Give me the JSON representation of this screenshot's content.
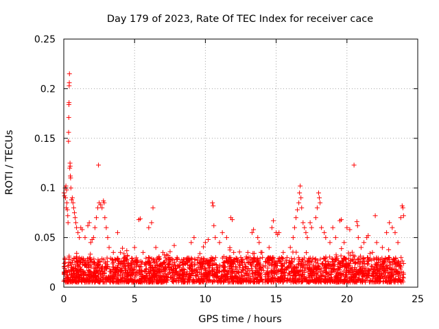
{
  "chart_data": {
    "type": "scatter",
    "title": "Day 179 of 2023, Rate Of TEC Index for receiver cace",
    "xlabel": "GPS time / hours",
    "ylabel": "ROTI / TECUs",
    "xlim": [
      0,
      25
    ],
    "ylim": [
      0,
      0.25
    ],
    "x_ticks": [
      0,
      5,
      10,
      15,
      20,
      25
    ],
    "x_tick_labels": [
      "0",
      "5",
      "10",
      "15",
      "20",
      "25"
    ],
    "y_ticks": [
      0,
      0.05,
      0.1,
      0.15,
      0.2,
      0.25
    ],
    "y_tick_labels": [
      "0",
      "0.05",
      "0.1",
      "0.15",
      "0.2",
      "0.25"
    ],
    "grid": true,
    "marker": "+",
    "series_color": "#ff0000",
    "background_band": {
      "x_range": [
        0,
        24
      ],
      "y_typical": [
        0.005,
        0.03
      ]
    },
    "points": [
      [
        0.02,
        0.095
      ],
      [
        0.05,
        0.092
      ],
      [
        0.1,
        0.1
      ],
      [
        0.12,
        0.09
      ],
      [
        0.15,
        0.102
      ],
      [
        0.18,
        0.08
      ],
      [
        0.2,
        0.098
      ],
      [
        0.22,
        0.085
      ],
      [
        0.25,
        0.078
      ],
      [
        0.28,
        0.072
      ],
      [
        0.3,
        0.065
      ],
      [
        0.33,
        0.147
      ],
      [
        0.34,
        0.156
      ],
      [
        0.35,
        0.171
      ],
      [
        0.36,
        0.184
      ],
      [
        0.37,
        0.186
      ],
      [
        0.38,
        0.203
      ],
      [
        0.39,
        0.206
      ],
      [
        0.4,
        0.215
      ],
      [
        0.42,
        0.12
      ],
      [
        0.44,
        0.125
      ],
      [
        0.45,
        0.122
      ],
      [
        0.46,
        0.112
      ],
      [
        0.48,
        0.11
      ],
      [
        0.5,
        0.1
      ],
      [
        0.55,
        0.088
      ],
      [
        0.6,
        0.09
      ],
      [
        0.65,
        0.085
      ],
      [
        0.7,
        0.08
      ],
      [
        0.75,
        0.075
      ],
      [
        0.8,
        0.07
      ],
      [
        0.85,
        0.065
      ],
      [
        0.9,
        0.06
      ],
      [
        1.0,
        0.055
      ],
      [
        1.1,
        0.05
      ],
      [
        1.2,
        0.06
      ],
      [
        1.3,
        0.058
      ],
      [
        1.5,
        0.05
      ],
      [
        1.7,
        0.062
      ],
      [
        1.8,
        0.065
      ],
      [
        1.9,
        0.045
      ],
      [
        2.0,
        0.048
      ],
      [
        2.1,
        0.05
      ],
      [
        2.2,
        0.06
      ],
      [
        2.3,
        0.07
      ],
      [
        2.4,
        0.08
      ],
      [
        2.45,
        0.123
      ],
      [
        2.5,
        0.085
      ],
      [
        2.6,
        0.083
      ],
      [
        2.7,
        0.08
      ],
      [
        2.8,
        0.087
      ],
      [
        2.85,
        0.085
      ],
      [
        2.9,
        0.07
      ],
      [
        3.0,
        0.06
      ],
      [
        3.1,
        0.05
      ],
      [
        3.2,
        0.04
      ],
      [
        3.5,
        0.035
      ],
      [
        3.8,
        0.055
      ],
      [
        4.0,
        0.035
      ],
      [
        4.5,
        0.032
      ],
      [
        5.0,
        0.04
      ],
      [
        5.3,
        0.068
      ],
      [
        5.4,
        0.069
      ],
      [
        5.6,
        0.035
      ],
      [
        6.0,
        0.06
      ],
      [
        6.2,
        0.065
      ],
      [
        6.3,
        0.08
      ],
      [
        6.5,
        0.04
      ],
      [
        7.0,
        0.035
      ],
      [
        7.5,
        0.03
      ],
      [
        7.8,
        0.042
      ],
      [
        8.0,
        0.03
      ],
      [
        8.5,
        0.028
      ],
      [
        9.0,
        0.045
      ],
      [
        9.2,
        0.05
      ],
      [
        9.5,
        0.03
      ],
      [
        10.0,
        0.045
      ],
      [
        10.2,
        0.048
      ],
      [
        10.5,
        0.085
      ],
      [
        10.55,
        0.082
      ],
      [
        10.6,
        0.062
      ],
      [
        10.7,
        0.05
      ],
      [
        11.0,
        0.045
      ],
      [
        11.2,
        0.055
      ],
      [
        11.5,
        0.05
      ],
      [
        11.8,
        0.07
      ],
      [
        11.9,
        0.068
      ],
      [
        12.0,
        0.035
      ],
      [
        12.5,
        0.03
      ],
      [
        13.0,
        0.035
      ],
      [
        13.3,
        0.055
      ],
      [
        13.4,
        0.058
      ],
      [
        13.7,
        0.05
      ],
      [
        13.8,
        0.045
      ],
      [
        14.0,
        0.035
      ],
      [
        14.5,
        0.04
      ],
      [
        14.7,
        0.06
      ],
      [
        14.8,
        0.067
      ],
      [
        15.0,
        0.055
      ],
      [
        15.1,
        0.053
      ],
      [
        15.2,
        0.055
      ],
      [
        15.5,
        0.035
      ],
      [
        16.0,
        0.04
      ],
      [
        16.2,
        0.05
      ],
      [
        16.3,
        0.06
      ],
      [
        16.4,
        0.07
      ],
      [
        16.5,
        0.078
      ],
      [
        16.6,
        0.085
      ],
      [
        16.65,
        0.095
      ],
      [
        16.7,
        0.102
      ],
      [
        16.75,
        0.09
      ],
      [
        16.8,
        0.08
      ],
      [
        16.9,
        0.065
      ],
      [
        17.0,
        0.06
      ],
      [
        17.1,
        0.055
      ],
      [
        17.2,
        0.05
      ],
      [
        17.4,
        0.065
      ],
      [
        17.5,
        0.06
      ],
      [
        17.8,
        0.07
      ],
      [
        17.9,
        0.08
      ],
      [
        18.0,
        0.095
      ],
      [
        18.05,
        0.09
      ],
      [
        18.1,
        0.085
      ],
      [
        18.2,
        0.06
      ],
      [
        18.4,
        0.055
      ],
      [
        18.5,
        0.05
      ],
      [
        18.8,
        0.045
      ],
      [
        19.0,
        0.06
      ],
      [
        19.2,
        0.05
      ],
      [
        19.5,
        0.067
      ],
      [
        19.6,
        0.068
      ],
      [
        19.8,
        0.045
      ],
      [
        20.0,
        0.06
      ],
      [
        20.2,
        0.058
      ],
      [
        20.5,
        0.123
      ],
      [
        20.7,
        0.066
      ],
      [
        20.75,
        0.062
      ],
      [
        20.8,
        0.05
      ],
      [
        21.0,
        0.04
      ],
      [
        21.2,
        0.045
      ],
      [
        21.4,
        0.05
      ],
      [
        21.5,
        0.052
      ],
      [
        21.8,
        0.035
      ],
      [
        22.0,
        0.072
      ],
      [
        22.1,
        0.045
      ],
      [
        22.5,
        0.04
      ],
      [
        22.8,
        0.055
      ],
      [
        23.0,
        0.065
      ],
      [
        23.2,
        0.06
      ],
      [
        23.4,
        0.055
      ],
      [
        23.6,
        0.045
      ],
      [
        23.8,
        0.07
      ],
      [
        23.9,
        0.082
      ],
      [
        23.95,
        0.08
      ],
      [
        24.0,
        0.072
      ]
    ]
  }
}
